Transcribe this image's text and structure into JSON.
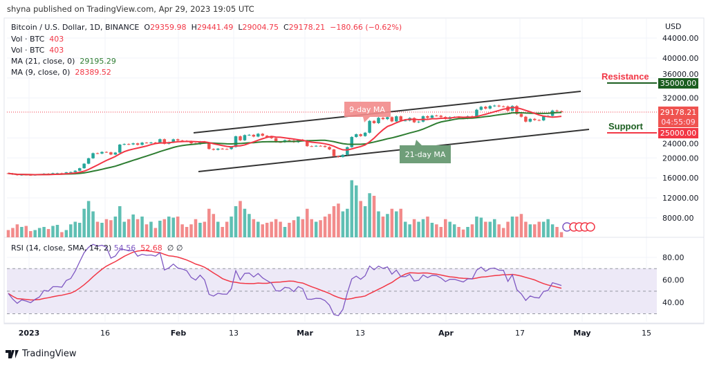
{
  "header": {
    "published": "shyna published on TradingView.com, Apr 29, 2023 19:05 UTC"
  },
  "legend": {
    "symbol": "Bitcoin / U.S. Dollar, 1D, BINANCE",
    "o_label": "O",
    "open": "29359.98",
    "h_label": "H",
    "high": "29441.49",
    "l_label": "L",
    "low": "29004.75",
    "c_label": "C",
    "close": "29178.21",
    "change": "−180.66 (−0.62%)",
    "vol1_label": "Vol · BTC",
    "vol1_value": "403",
    "vol2_label": "Vol · BTC",
    "vol2_value": "403",
    "ma21_label": "MA (21, close, 0)",
    "ma21_value": "29195.29",
    "ma9_label": "MA (9, close, 0)",
    "ma9_value": "28389.52"
  },
  "rsi_legend": {
    "label": "RSI (14, close, SMA, 14, 2)",
    "rsi": "54.56",
    "sma": "52.68",
    "extra": "∅ ∅"
  },
  "price_axis": {
    "currency": "USD",
    "ticks": [
      "44000.00",
      "40000.00",
      "36000.00",
      "32000.00",
      "24000.00",
      "20000.00",
      "16000.00",
      "12000.00",
      "8000.00"
    ],
    "last_price": "29178.21",
    "countdown": "04:55:09",
    "resistance_value": "35000.00",
    "support_value": "25000.00"
  },
  "rsi_axis": {
    "ticks": [
      "80.00",
      "60.00",
      "40.00"
    ]
  },
  "time_axis": {
    "labels": [
      "2023",
      "16",
      "Feb",
      "13",
      "Mar",
      "13",
      "Apr",
      "17",
      "May",
      "15"
    ]
  },
  "annotations": {
    "resistance": "Resistance",
    "support": "Support",
    "ma9": "9-day MA",
    "ma21": "21-day MA"
  },
  "footer": {
    "brand": "TradingView"
  },
  "colors": {
    "up": "#26a69a",
    "down": "#ef5350",
    "vol_up": "#5fbfb3",
    "vol_down": "#f28b8b",
    "ma9": "#f23645",
    "ma21": "#2e7d32",
    "rsi": "#7e57c2",
    "rsi_sma": "#f23645",
    "resistance": "#1b5e20",
    "support": "#f23645"
  },
  "chart_data": {
    "type": "candlestick",
    "start_date": "2022-12-26",
    "end_date": "2023-04-29",
    "close": [
      16900,
      16710,
      16550,
      16640,
      16600,
      16540,
      16620,
      16680,
      16850,
      16830,
      16950,
      16950,
      16940,
      17120,
      17180,
      17440,
      17940,
      18850,
      19930,
      20950,
      20880,
      21200,
      21130,
      20680,
      21070,
      22670,
      22780,
      22710,
      22920,
      22630,
      23060,
      23010,
      23080,
      23030,
      23750,
      22830,
      23130,
      23730,
      23490,
      23430,
      23330,
      22930,
      22760,
      23260,
      22960,
      21800,
      21630,
      21860,
      21790,
      21780,
      22200,
      24330,
      23530,
      24570,
      24630,
      24280,
      24840,
      24450,
      24190,
      23950,
      23180,
      23160,
      23550,
      23490,
      23150,
      23650,
      23470,
      22360,
      22350,
      22430,
      22410,
      22200,
      21700,
      20360,
      20190,
      20630,
      22160,
      24200,
      24740,
      24380,
      25050,
      27420,
      26970,
      28040,
      27770,
      28170,
      27310,
      28330,
      27490,
      27490,
      27990,
      27140,
      27270,
      28350,
      28030,
      28480,
      28450,
      28200,
      27800,
      28170,
      28170,
      28040,
      27920,
      28330,
      28320,
      29650,
      30230,
      29890,
      30390,
      30480,
      30320,
      30310,
      29440,
      30390,
      28820,
      28250,
      27270,
      27820,
      27590,
      27520,
      28300,
      28420,
      29480,
      29340,
      29178
    ],
    "volume_k": [
      14,
      18,
      25,
      20,
      22,
      12,
      14,
      18,
      20,
      16,
      22,
      24,
      10,
      14,
      25,
      30,
      28,
      55,
      70,
      50,
      30,
      28,
      35,
      33,
      40,
      60,
      30,
      35,
      44,
      35,
      40,
      25,
      30,
      18,
      32,
      35,
      40,
      38,
      40,
      25,
      20,
      25,
      35,
      28,
      30,
      55,
      45,
      30,
      20,
      30,
      40,
      60,
      70,
      55,
      45,
      35,
      30,
      25,
      28,
      30,
      35,
      30,
      20,
      28,
      33,
      40,
      35,
      55,
      35,
      30,
      33,
      40,
      45,
      60,
      65,
      50,
      55,
      110,
      100,
      70,
      60,
      85,
      80,
      50,
      40,
      45,
      55,
      50,
      55,
      30,
      25,
      35,
      30,
      35,
      40,
      28,
      25,
      20,
      35,
      30,
      25,
      20,
      15,
      20,
      25,
      40,
      38,
      30,
      30,
      35,
      25,
      18,
      30,
      40,
      40,
      45,
      30,
      25,
      25,
      30,
      30,
      35,
      25,
      20,
      10
    ],
    "resistance": 35000,
    "support": 25000,
    "rsi_levels": [
      70,
      50,
      30
    ],
    "price_ylim": [
      8000,
      44000
    ],
    "rsi_ylim": [
      30,
      80
    ]
  }
}
